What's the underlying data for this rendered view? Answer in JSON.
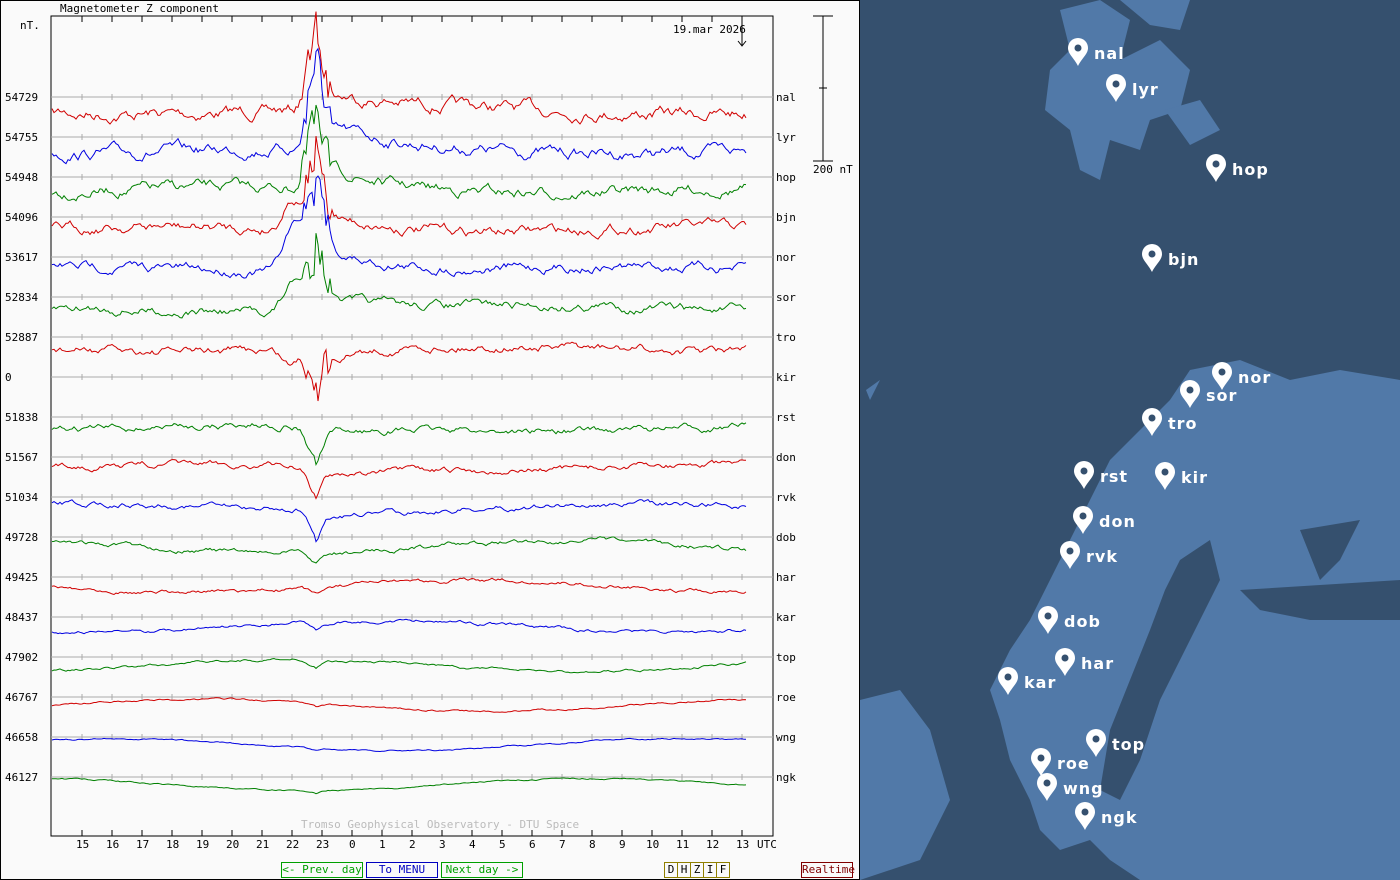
{
  "title": "Magnetometer Z component",
  "unit_label": "nT.",
  "date": "19.mar 2026",
  "scale_label": "200 nT",
  "credit": "Tromso Geophysical Observatory - DTU Space",
  "x_ticks": [
    "15",
    "16",
    "17",
    "18",
    "19",
    "20",
    "21",
    "22",
    "23",
    "0",
    "1",
    "2",
    "3",
    "4",
    "5",
    "6",
    "7",
    "8",
    "9",
    "10",
    "11",
    "12",
    "13"
  ],
  "x_unit": "UTC",
  "stations": [
    {
      "code": "nal",
      "baseline": "54729",
      "color": "#d00000"
    },
    {
      "code": "lyr",
      "baseline": "54755",
      "color": "#0000e0"
    },
    {
      "code": "hop",
      "baseline": "54948",
      "color": "#008000"
    },
    {
      "code": "bjn",
      "baseline": "54096",
      "color": "#d00000"
    },
    {
      "code": "nor",
      "baseline": "53617",
      "color": "#0000e0"
    },
    {
      "code": "sor",
      "baseline": "52834",
      "color": "#008000"
    },
    {
      "code": "tro",
      "baseline": "52887",
      "color": "#d00000"
    },
    {
      "code": "kir",
      "baseline": "0",
      "color": "#0000e0"
    },
    {
      "code": "rst",
      "baseline": "51838",
      "color": "#008000"
    },
    {
      "code": "don",
      "baseline": "51567",
      "color": "#d00000"
    },
    {
      "code": "rvk",
      "baseline": "51034",
      "color": "#0000e0"
    },
    {
      "code": "dob",
      "baseline": "49728",
      "color": "#008000"
    },
    {
      "code": "har",
      "baseline": "49425",
      "color": "#d00000"
    },
    {
      "code": "kar",
      "baseline": "48437",
      "color": "#0000e0"
    },
    {
      "code": "top",
      "baseline": "47902",
      "color": "#008000"
    },
    {
      "code": "roe",
      "baseline": "46767",
      "color": "#d00000"
    },
    {
      "code": "wng",
      "baseline": "46658",
      "color": "#0000e0"
    },
    {
      "code": "ngk",
      "baseline": "46127",
      "color": "#008000"
    }
  ],
  "buttons": {
    "prev": "<- Prev. day",
    "menu": "To MENU",
    "next": "Next day ->",
    "components": [
      "D",
      "H",
      "Z",
      "I",
      "F"
    ],
    "realtime": "Realtime"
  },
  "map_labels": [
    "nal",
    "lyr",
    "hop",
    "bjn",
    "nor",
    "sor",
    "tro",
    "rst",
    "kir",
    "don",
    "rvk",
    "dob",
    "har",
    "kar",
    "top",
    "roe",
    "wng",
    "ngk"
  ],
  "colors": {
    "sea": "#35506e",
    "land": "#5179a8"
  }
}
